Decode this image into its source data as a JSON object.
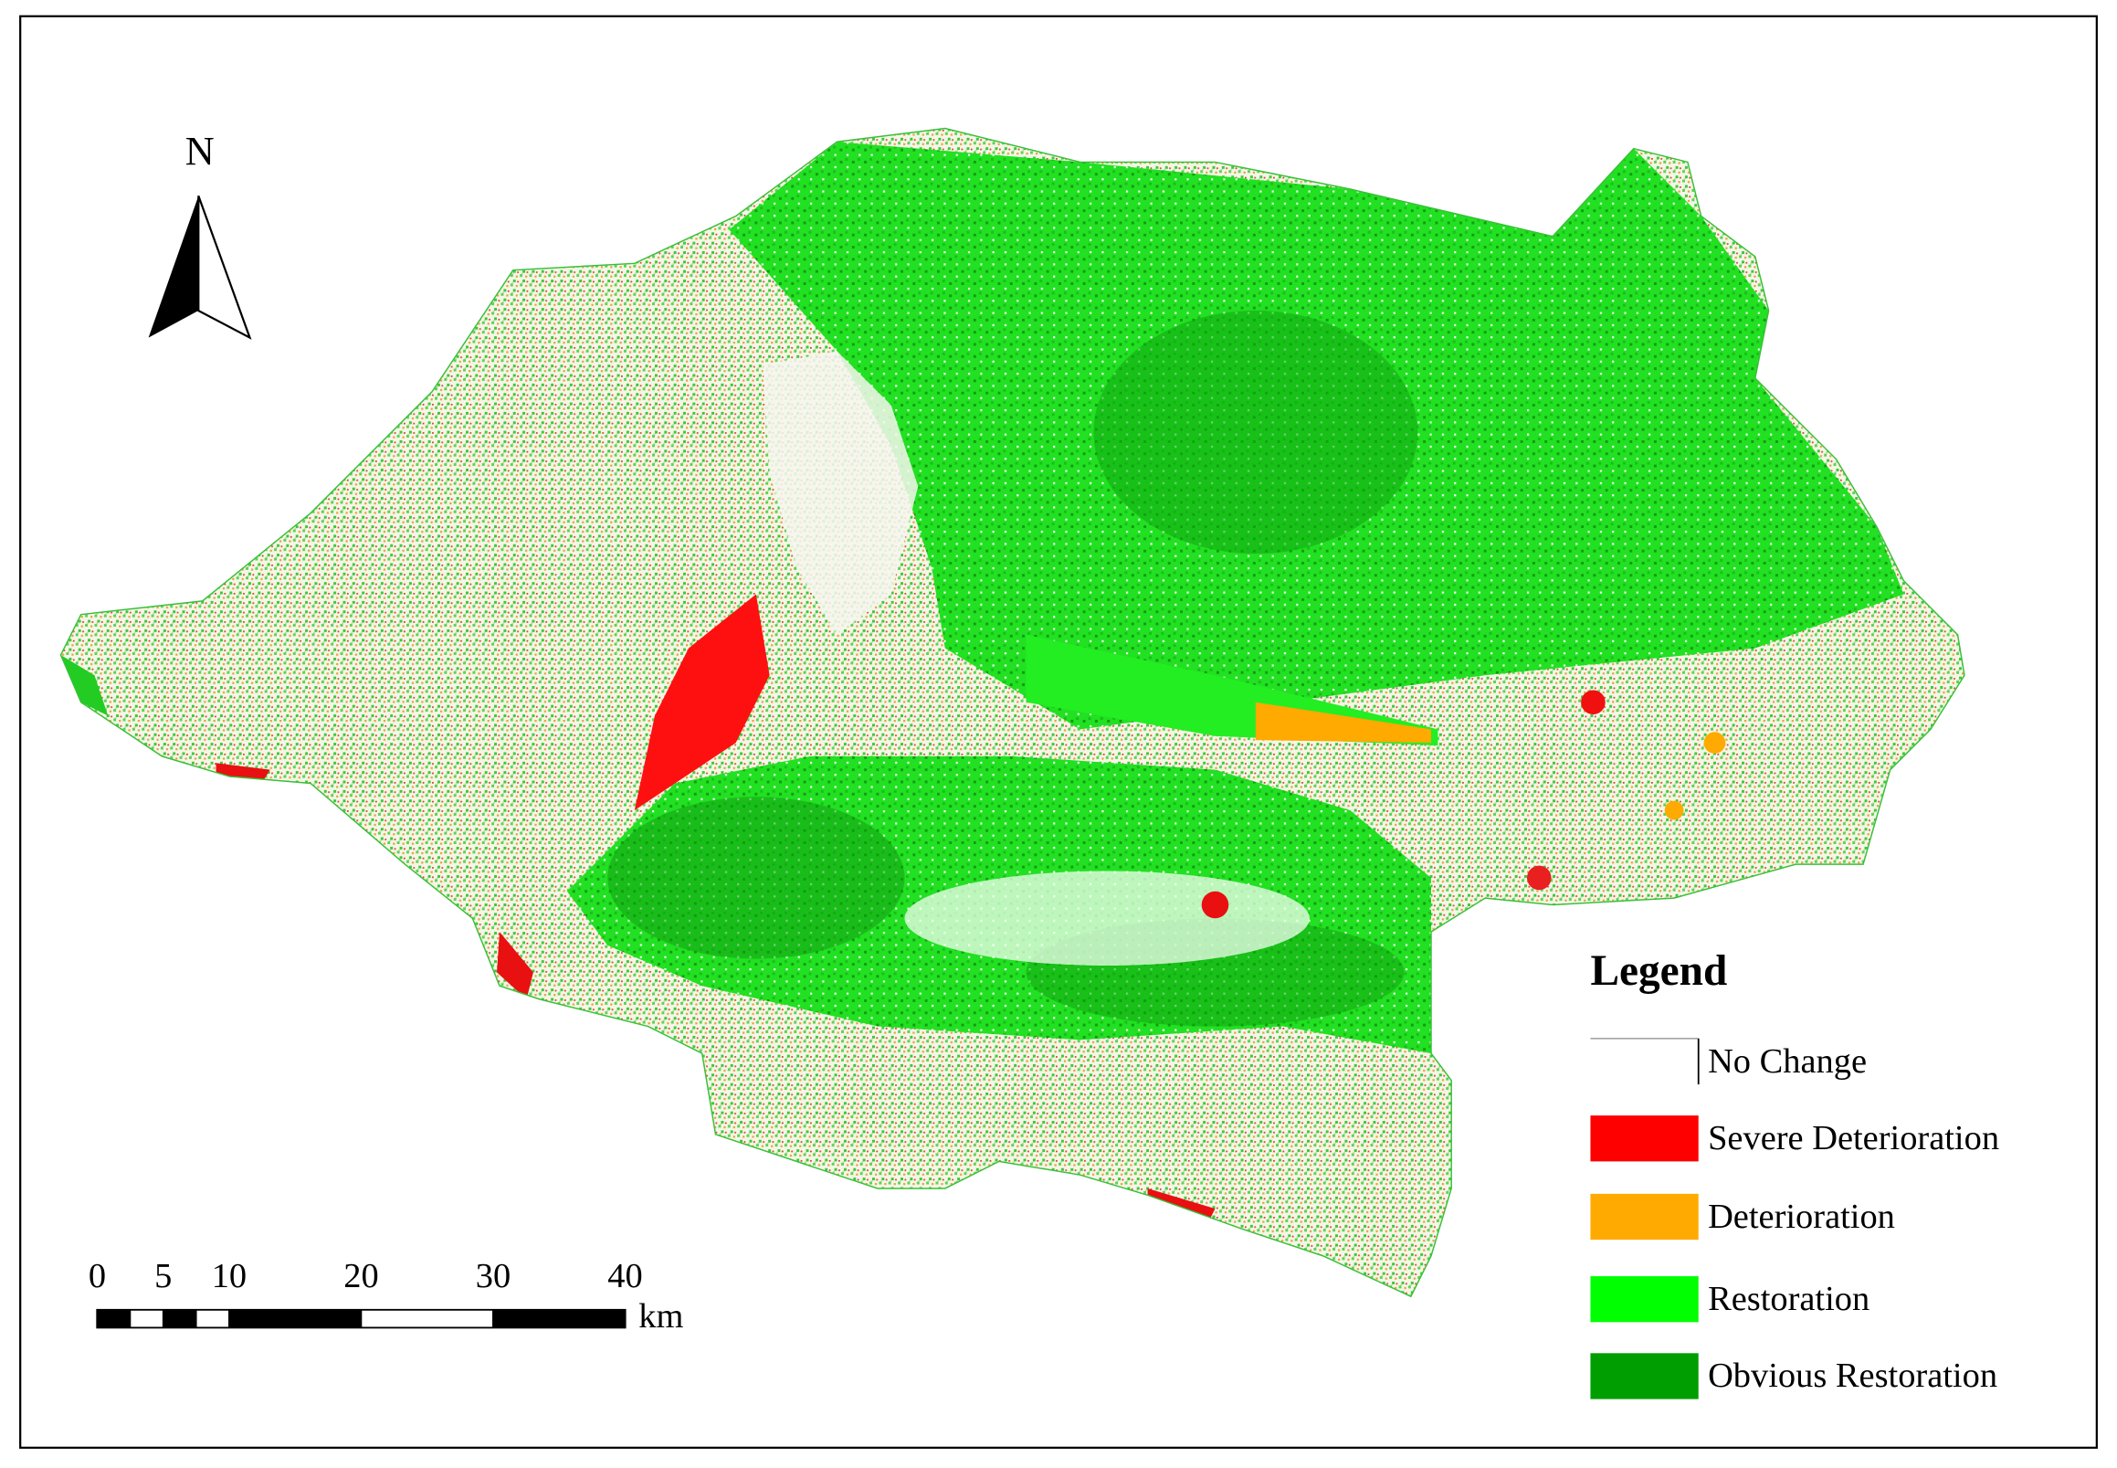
{
  "north_label": "N",
  "scale_bar": {
    "ticks": [
      0,
      5,
      10,
      20,
      30,
      40
    ],
    "unit": "km"
  },
  "legend": {
    "title": "Legend",
    "items": [
      {
        "label": "No Change",
        "color": "#ffffff"
      },
      {
        "label": "Severe Deterioration",
        "color": "#ff0000"
      },
      {
        "label": "Deterioration",
        "color": "#ffaa00"
      },
      {
        "label": "Restoration",
        "color": "#00ff00"
      },
      {
        "label": "Obvious Restoration",
        "color": "#009e00"
      }
    ]
  }
}
